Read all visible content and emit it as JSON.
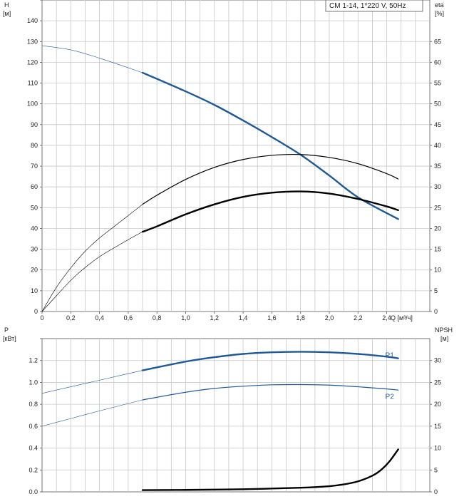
{
  "colors": {
    "blue": "#1f5a96",
    "black": "#000000",
    "grid": "#c8c8c8"
  },
  "chart_data": [
    {
      "type": "line",
      "title": "CM 1-14, 1*220 V, 50Hz",
      "xlabel": "Q [м³/ч]",
      "ylabel_left": [
        "H",
        "[м]"
      ],
      "ylabel_right": [
        "eta",
        "[%]"
      ],
      "xlim": [
        0,
        2.7
      ],
      "ylim_left": [
        0,
        150
      ],
      "ylim_right": [
        0,
        75
      ],
      "x_ticks": [
        "0",
        "0,2",
        "0,4",
        "0,6",
        "0,8",
        "1,0",
        "1,2",
        "1,4",
        "1,6",
        "1,8",
        "2,0",
        "2,2",
        "2,4"
      ],
      "y_ticks_left": [
        "0",
        "10",
        "20",
        "30",
        "40",
        "50",
        "60",
        "70",
        "80",
        "90",
        "100",
        "110",
        "120",
        "130",
        "140"
      ],
      "y_ticks_right": [
        "0",
        "5",
        "10",
        "15",
        "20",
        "25",
        "30",
        "35",
        "40",
        "45",
        "50",
        "55",
        "60",
        "65"
      ],
      "grid": true,
      "series": [
        {
          "axis": "left",
          "color": "#1f5a96",
          "weight": "bold",
          "thin_until": 0.7,
          "x": [
            0,
            0.2,
            0.4,
            0.7,
            1.0,
            1.2,
            1.4,
            1.6,
            1.8,
            2.0,
            2.2,
            2.48
          ],
          "y": [
            128,
            126,
            122,
            115,
            106,
            99.5,
            92,
            84,
            75.5,
            65.5,
            55,
            44.5
          ]
        },
        {
          "axis": "right",
          "color": "#000000",
          "weight": "normal",
          "thin_until": 0.7,
          "x": [
            0,
            0.1,
            0.2,
            0.3,
            0.4,
            0.5,
            0.6,
            0.7,
            0.8,
            1.0,
            1.2,
            1.4,
            1.6,
            1.8,
            2.0,
            2.2,
            2.4,
            2.48
          ],
          "y": [
            0,
            5.8,
            10.5,
            14.5,
            17.7,
            20.4,
            23.1,
            25.8,
            28,
            31.8,
            34.7,
            36.6,
            37.6,
            37.8,
            37.1,
            35.6,
            33.2,
            31.9
          ]
        },
        {
          "axis": "right",
          "color": "#000000",
          "weight": "bold",
          "thin_until": 0.7,
          "x": [
            0,
            0.1,
            0.2,
            0.3,
            0.4,
            0.5,
            0.6,
            0.7,
            0.8,
            1.0,
            1.2,
            1.4,
            1.6,
            1.8,
            2.0,
            2.2,
            2.4,
            2.48
          ],
          "y": [
            0,
            3.8,
            7.5,
            10.6,
            13.2,
            15.3,
            17.3,
            19.2,
            20.5,
            23.4,
            25.8,
            27.6,
            28.6,
            28.9,
            28.4,
            27.1,
            25.3,
            24.4
          ]
        }
      ]
    },
    {
      "type": "line",
      "xlim": [
        0,
        2.7
      ],
      "ylabel_left": [
        "P",
        "[кВт]"
      ],
      "ylabel_right": [
        "NPSH",
        "[м]"
      ],
      "ylim_left": [
        0,
        1.4
      ],
      "ylim_right": [
        0,
        35
      ],
      "y_ticks_left": [
        "0.0",
        "0.2",
        "0.4",
        "0.6",
        "0.8",
        "1.0",
        "1.2"
      ],
      "y_ticks_right": [
        "0",
        "5",
        "10",
        "15",
        "20",
        "25",
        "30"
      ],
      "grid": true,
      "series": [
        {
          "name": "P1",
          "axis": "left",
          "color": "#1f5a96",
          "weight": "bold",
          "thin_until": 0.7,
          "x": [
            0,
            0.2,
            0.4,
            0.7,
            1.0,
            1.2,
            1.4,
            1.6,
            1.8,
            2.0,
            2.2,
            2.4,
            2.48
          ],
          "y": [
            0.9,
            0.96,
            1.02,
            1.11,
            1.19,
            1.23,
            1.26,
            1.275,
            1.28,
            1.275,
            1.26,
            1.235,
            1.22
          ]
        },
        {
          "name": "P2",
          "axis": "left",
          "color": "#1f5a96",
          "weight": "normal",
          "thin_until": 0.7,
          "x": [
            0,
            0.2,
            0.4,
            0.7,
            1.0,
            1.2,
            1.4,
            1.6,
            1.8,
            2.0,
            2.2,
            2.4,
            2.48
          ],
          "y": [
            0.6,
            0.67,
            0.74,
            0.84,
            0.91,
            0.945,
            0.965,
            0.978,
            0.98,
            0.975,
            0.96,
            0.94,
            0.93
          ]
        },
        {
          "axis": "right",
          "color": "#000000",
          "weight": "bold",
          "thin_until": 0,
          "x": [
            0.7,
            1.0,
            1.4,
            1.8,
            2.0,
            2.1,
            2.2,
            2.3,
            2.36,
            2.42,
            2.48
          ],
          "y": [
            0.4,
            0.45,
            0.6,
            0.95,
            1.3,
            1.7,
            2.4,
            3.7,
            5.0,
            7.0,
            9.7
          ]
        }
      ]
    }
  ]
}
